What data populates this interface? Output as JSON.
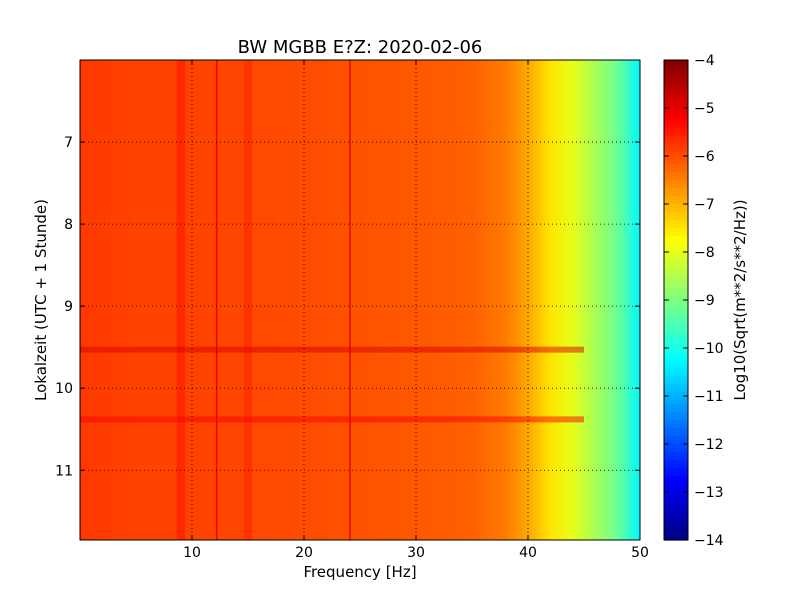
{
  "chart_data": {
    "type": "heatmap",
    "title": "BW MGBB E?Z: 2020-02-06",
    "xlabel": "Frequency [Hz]",
    "ylabel": "Lokalzeit (UTC + 1 Stunde)",
    "colorbar_label": "Log10(Sqrt(m**2/s**2/Hz))",
    "colormap": "jet",
    "xlim": [
      0,
      50
    ],
    "ylim": [
      11.85,
      6.0
    ],
    "x_ticks": [
      10,
      20,
      30,
      40,
      50
    ],
    "y_ticks": [
      7,
      8,
      9,
      10,
      11
    ],
    "colorbar_range": [
      -14,
      -4
    ],
    "colorbar_ticks": [
      -4,
      -5,
      -6,
      -7,
      -8,
      -9,
      -10,
      -11,
      -12,
      -13,
      -14
    ],
    "grid": true,
    "value_profile_vs_frequency": {
      "frequency_hz": [
        0,
        5,
        10,
        15,
        20,
        25,
        30,
        35,
        38,
        40,
        42,
        44,
        46,
        48,
        50
      ],
      "log10_amplitude": [
        -5.8,
        -5.9,
        -5.9,
        -5.95,
        -6.0,
        -6.05,
        -6.1,
        -6.2,
        -6.45,
        -6.9,
        -7.5,
        -8.0,
        -8.6,
        -9.2,
        -10.3
      ]
    },
    "features": [
      {
        "kind": "vertical_line",
        "frequency_hz": 12.2,
        "log10_amplitude": -5.0
      },
      {
        "kind": "vertical_line",
        "frequency_hz": 24.1,
        "log10_amplitude": -5.0
      },
      {
        "kind": "vertical_band",
        "frequency_hz": 9.0,
        "log10_amplitude": -5.3
      },
      {
        "kind": "vertical_band",
        "frequency_hz": 15.0,
        "log10_amplitude": -5.5
      },
      {
        "kind": "horizontal_band",
        "time": 10.38,
        "log10_amplitude": -5.2
      },
      {
        "kind": "horizontal_band",
        "time": 9.53,
        "log10_amplitude": -4.9
      }
    ]
  }
}
